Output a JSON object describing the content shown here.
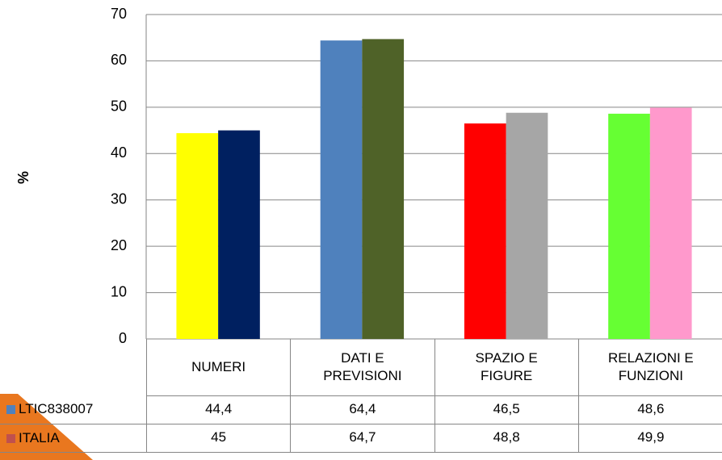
{
  "chart_data": {
    "type": "bar",
    "y_label": "%",
    "categories": [
      "NUMERI",
      "DATI E\nPREVISIONI",
      "SPAZIO E\nFIGURE",
      "RELAZIONI E\nFUNZIONI"
    ],
    "series": [
      {
        "name": "LTIC838007",
        "color": "#4f81bd",
        "colors": [
          "#ffff00",
          "#4f81bd",
          "#ff0000",
          "#66ff33"
        ],
        "values": [
          44.4,
          64.4,
          46.5,
          48.6
        ],
        "value_labels": [
          "44,4",
          "64,4",
          "46,5",
          "48,6"
        ]
      },
      {
        "name": "ITALIA",
        "color": "#c0504d",
        "colors": [
          "#002060",
          "#4f6228",
          "#a6a6a6",
          "#ff99cc"
        ],
        "values": [
          45,
          64.7,
          48.8,
          49.9
        ],
        "value_labels": [
          "45",
          "64,7",
          "48,8",
          "49,9"
        ]
      }
    ],
    "ylim": [
      0,
      70
    ],
    "yticks": [
      0,
      10,
      20,
      30,
      40,
      50,
      60,
      70
    ],
    "grid": true,
    "data_table": true
  }
}
